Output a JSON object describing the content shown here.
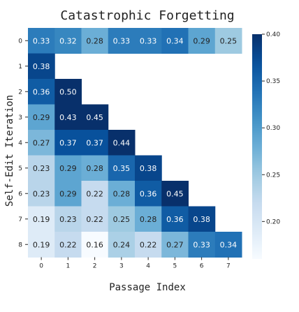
{
  "chart_data": {
    "type": "heatmap",
    "title": "Catastrophic Forgetting",
    "xlabel": "Passage Index",
    "ylabel": "Self-Edit Iteration",
    "x_ticks": [
      "0",
      "1",
      "2",
      "3",
      "4",
      "5",
      "6",
      "7"
    ],
    "y_ticks": [
      "0",
      "1",
      "2",
      "3",
      "4",
      "5",
      "6",
      "7",
      "8"
    ],
    "values": [
      [
        0.33,
        0.32,
        0.28,
        0.33,
        0.33,
        0.34,
        0.29,
        0.25
      ],
      [
        0.38,
        null,
        null,
        null,
        null,
        null,
        null,
        null
      ],
      [
        0.36,
        0.5,
        null,
        null,
        null,
        null,
        null,
        null
      ],
      [
        0.29,
        0.43,
        0.45,
        null,
        null,
        null,
        null,
        null
      ],
      [
        0.27,
        0.37,
        0.37,
        0.44,
        null,
        null,
        null,
        null
      ],
      [
        0.23,
        0.29,
        0.28,
        0.35,
        0.38,
        null,
        null,
        null
      ],
      [
        0.23,
        0.29,
        0.22,
        0.28,
        0.36,
        0.45,
        null,
        null
      ],
      [
        0.19,
        0.23,
        0.22,
        0.25,
        0.28,
        0.36,
        0.38,
        null
      ],
      [
        0.19,
        0.22,
        0.16,
        0.24,
        0.22,
        0.27,
        0.33,
        0.34
      ]
    ],
    "value_labels": [
      [
        "0.33",
        "0.32",
        "0.28",
        "0.33",
        "0.33",
        "0.34",
        "0.29",
        "0.25"
      ],
      [
        "0.38"
      ],
      [
        "0.36",
        "0.50"
      ],
      [
        "0.29",
        "0.43",
        "0.45"
      ],
      [
        "0.27",
        "0.37",
        "0.37",
        "0.44"
      ],
      [
        "0.23",
        "0.29",
        "0.28",
        "0.35",
        "0.38"
      ],
      [
        "0.23",
        "0.29",
        "0.22",
        "0.28",
        "0.36",
        "0.45"
      ],
      [
        "0.19",
        "0.23",
        "0.22",
        "0.25",
        "0.28",
        "0.36",
        "0.38"
      ],
      [
        "0.19",
        "0.22",
        "0.16",
        "0.24",
        "0.22",
        "0.27",
        "0.33",
        "0.34"
      ]
    ],
    "colorbar": {
      "colormap": "Blues",
      "vmin": 0.16,
      "vmax": 0.4,
      "ticks": [
        "0.20",
        "0.25",
        "0.30",
        "0.35",
        "0.40"
      ]
    },
    "colors": {
      "missing": "#ffffff",
      "text_dark": "#222222",
      "text_light": "#ffffff"
    }
  }
}
